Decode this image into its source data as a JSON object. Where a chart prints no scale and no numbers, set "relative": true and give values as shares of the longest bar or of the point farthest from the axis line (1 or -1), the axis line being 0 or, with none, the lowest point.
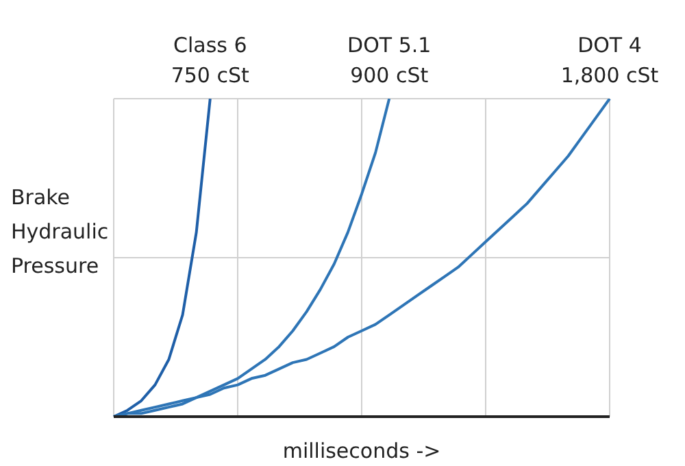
{
  "chart_data": {
    "type": "line",
    "relative": true,
    "xlabel": "milliseconds ->",
    "ylabel": "Brake Hydraulic Pressure",
    "grid": true,
    "marker": "none",
    "line_style": "solid",
    "categories": [
      null,
      null,
      null,
      null,
      null,
      null,
      null,
      null,
      null,
      null,
      null,
      null,
      null,
      null,
      null,
      null,
      null,
      null,
      null,
      null,
      null,
      null,
      null,
      null,
      null,
      null,
      null,
      null,
      null,
      null,
      null,
      null,
      null,
      null,
      null,
      null,
      null
    ],
    "series": [
      {
        "name": "Class 6\n750 cSt",
        "color": "#1f5fa8",
        "values": [
          0,
          0.02,
          0.05,
          0.1,
          0.18,
          0.32,
          0.58,
          1,
          null,
          null,
          null,
          null,
          null,
          null,
          null,
          null,
          null,
          null,
          null,
          null,
          null,
          null,
          null,
          null,
          null,
          null,
          null,
          null,
          null,
          null,
          null,
          null,
          null,
          null,
          null,
          null,
          null
        ]
      },
      {
        "name": "DOT 5.1\n900 cSt",
        "color": "#2e75b6",
        "values": [
          0,
          0.01,
          0.01,
          0.02,
          0.03,
          0.04,
          0.06,
          0.08,
          0.1,
          0.12,
          0.15,
          0.18,
          0.22,
          0.27,
          0.33,
          0.4,
          0.48,
          0.58,
          0.7,
          0.83,
          1,
          null,
          null,
          null,
          null,
          null,
          null,
          null,
          null,
          null,
          null,
          null,
          null,
          null,
          null,
          null,
          null
        ]
      },
      {
        "name": "DOT 4\n1,800 cSt",
        "color": "#2e75b6",
        "values": [
          0,
          0.01,
          0.02,
          0.03,
          0.04,
          0.05,
          0.06,
          0.07,
          0.09,
          0.1,
          0.12,
          0.13,
          0.15,
          0.17,
          0.18,
          0.2,
          0.22,
          0.25,
          0.27,
          0.29,
          0.32,
          0.35,
          0.38,
          0.41,
          0.44,
          0.47,
          0.51,
          0.55,
          0.59,
          0.63,
          0.67,
          0.72,
          0.77,
          0.82,
          0.88,
          0.94,
          1
        ]
      }
    ]
  }
}
